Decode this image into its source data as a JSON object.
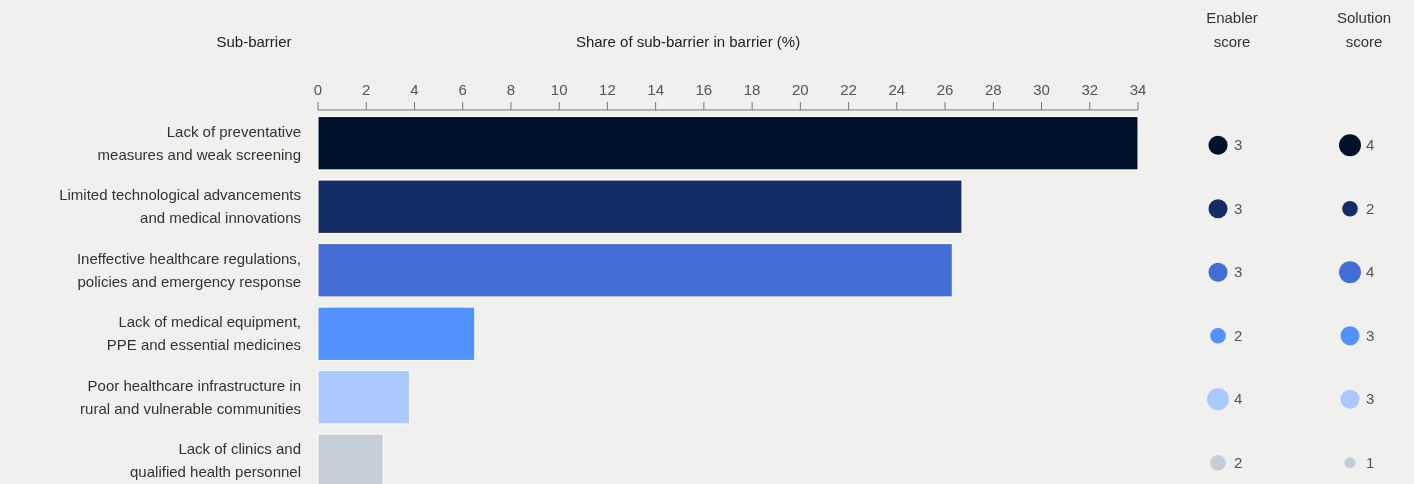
{
  "chart_data": [
    {
      "type": "bar",
      "orientation": "horizontal",
      "ylabel": "Sub-barrier",
      "xlabel": "Share of sub-barrier in barrier (%)",
      "categories": [
        "Lack of preventative measures and weak screening",
        "Limited technological advancements and medical innovations",
        "Ineffective healthcare regulations, policies and emergency response",
        "Lack of medical equipment, PPE and essential medicines",
        "Poor healthcare infrastructure in rural and vulnerable communities",
        "Lack of clinics and qualified health personnel"
      ],
      "values": [
        34,
        26.7,
        26.3,
        6.5,
        3.8,
        2.7
      ],
      "colors": [
        "#01122b",
        "#142d66",
        "#426ed6",
        "#5291ff",
        "#abc9ff",
        "#c5cdd5"
      ],
      "xlim": [
        0,
        34
      ],
      "xticks": [
        0,
        2,
        4,
        6,
        8,
        10,
        12,
        14,
        16,
        18,
        20,
        22,
        24,
        26,
        28,
        30,
        32,
        34
      ],
      "grid": false
    },
    {
      "type": "other",
      "title": "Enabler score",
      "categories": [
        null,
        null,
        null,
        null,
        null,
        null
      ],
      "values": [
        3,
        3,
        3,
        2,
        4,
        2
      ],
      "colors": [
        "#01122b",
        "#142d66",
        "#426ed6",
        "#5291ff",
        "#abc9ff",
        "#c5cdd5"
      ],
      "data_labels": true
    },
    {
      "type": "other",
      "title": "Solution score",
      "categories": [
        null,
        null,
        null,
        null,
        null,
        null
      ],
      "values": [
        4,
        2,
        4,
        3,
        3,
        1
      ],
      "colors": [
        "#01122b",
        "#142d66",
        "#426ed6",
        "#5291ff",
        "#abc9ff",
        "#c5cdd5"
      ],
      "data_labels": true
    }
  ]
}
